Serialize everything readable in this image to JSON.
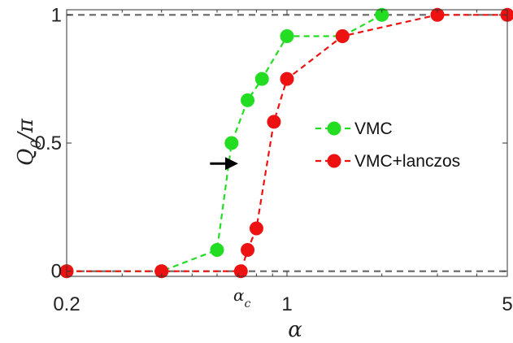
{
  "chart_data": {
    "type": "line",
    "title": "",
    "xlabel": "α",
    "ylabel": "Q0/π",
    "ylabel_main": "Q",
    "ylabel_sub": "0",
    "ylabel_tail": "/π",
    "xscale": "log",
    "xlim": [
      0.2,
      5
    ],
    "ylim": [
      -0.02,
      1.02
    ],
    "x_ticks": [
      0.2,
      1,
      5
    ],
    "x_tick_labels": [
      "0.2",
      "1",
      "5"
    ],
    "y_ticks": [
      0,
      0.5,
      1
    ],
    "y_tick_labels": [
      "0",
      "0.5",
      "1"
    ],
    "grid": false,
    "legend_position": "right",
    "reference_lines": [
      0,
      1
    ],
    "series": [
      {
        "name": "VMC",
        "color": "#22dd22",
        "x": [
          0.2,
          0.4,
          0.6,
          0.667,
          0.75,
          0.833,
          1.0,
          1.5,
          2.0
        ],
        "y": [
          0.0,
          0.0,
          0.083,
          0.5,
          0.667,
          0.75,
          0.917,
          0.917,
          1.0
        ]
      },
      {
        "name": "VMC+lanczos",
        "color": "#ee1111",
        "x": [
          0.2,
          0.4,
          0.714,
          0.75,
          0.8,
          0.909,
          1.0,
          1.5,
          3.0,
          5.0
        ],
        "y": [
          0.0,
          0.0,
          0.0,
          0.083,
          0.167,
          0.583,
          0.75,
          0.917,
          1.0,
          1.0
        ]
      }
    ],
    "annotations": {
      "alpha_c_main": "α",
      "alpha_c_sub": "c",
      "alpha_c_x": 0.72,
      "arrow_from": [
        0.57,
        0.42
      ],
      "arrow_to": [
        0.7,
        0.42
      ]
    }
  }
}
